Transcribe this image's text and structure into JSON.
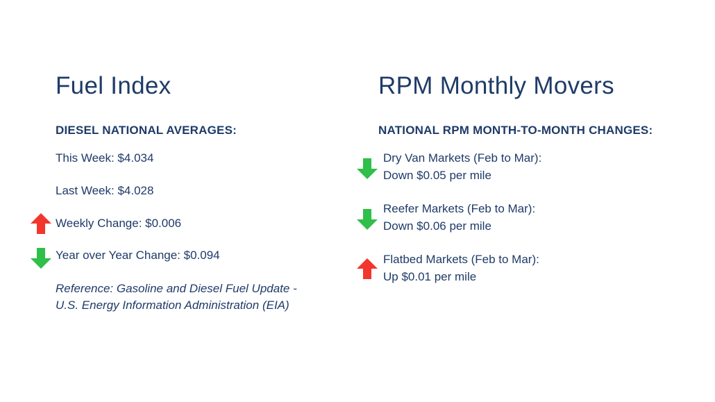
{
  "colors": {
    "text": "#1e3b68",
    "up_arrow": "#f2362d",
    "down_arrow": "#2fbf4a"
  },
  "fuel": {
    "title": "Fuel Index",
    "subtitle": "DIESEL NATIONAL AVERAGES:",
    "this_week": "This Week: $4.034",
    "last_week": "Last Week: $4.028",
    "weekly_change": {
      "text": "Weekly Change: $0.006",
      "direction": "up",
      "icon": "arrow-up-icon"
    },
    "yoy_change": {
      "text": "Year over Year Change: $0.094",
      "direction": "down",
      "icon": "arrow-down-icon"
    },
    "reference_line1": "Reference: Gasoline and Diesel Fuel Update -",
    "reference_line2": "U.S. Energy Information Administration (EIA)"
  },
  "rpm": {
    "title": "RPM Monthly Movers",
    "subtitle": "NATIONAL RPM MONTH-TO-MONTH CHANGES:",
    "movers": [
      {
        "market": "Dry Van Markets (Feb to Mar):",
        "change": "Down $0.05 per mile",
        "direction": "down",
        "icon": "arrow-down-icon"
      },
      {
        "market": "Reefer Markets (Feb to Mar):",
        "change": "Down $0.06 per mile",
        "direction": "down",
        "icon": "arrow-down-icon"
      },
      {
        "market": "Flatbed Markets (Feb to Mar):",
        "change": "Up $0.01 per mile",
        "direction": "up",
        "icon": "arrow-up-icon"
      }
    ]
  }
}
